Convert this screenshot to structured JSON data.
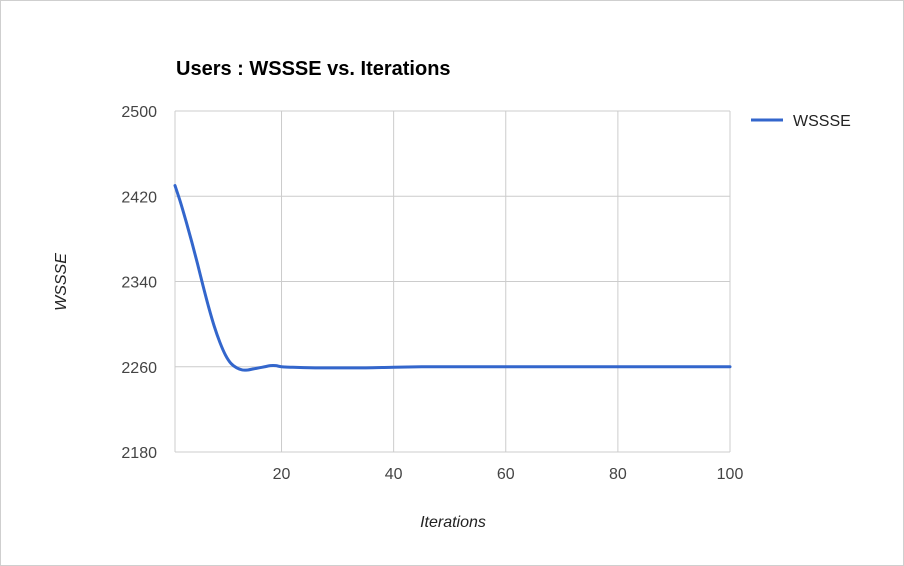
{
  "chart_data": {
    "type": "line",
    "title": "Users : WSSSE vs. Iterations",
    "xlabel": "Iterations",
    "ylabel": "WSSSE",
    "xlim": [
      1,
      100
    ],
    "ylim": [
      2180,
      2500
    ],
    "x_ticks": [
      20,
      40,
      60,
      80,
      100
    ],
    "y_ticks": [
      2180,
      2260,
      2340,
      2420,
      2500
    ],
    "x_tick_labels": [
      "20",
      "40",
      "60",
      "80",
      "100"
    ],
    "y_tick_labels": [
      "2180",
      "2260",
      "2340",
      "2420",
      "2500"
    ],
    "grid": true,
    "legend_position": "top-right",
    "series": [
      {
        "name": "WSSSE",
        "color": "#3366cc",
        "x": [
          1,
          2,
          3,
          4,
          5,
          6,
          7,
          8,
          9,
          10,
          11,
          12,
          13,
          14,
          15,
          16,
          17,
          18,
          19,
          20,
          22,
          24,
          26,
          28,
          30,
          35,
          40,
          45,
          50,
          60,
          70,
          80,
          90,
          100
        ],
        "y": [
          2430,
          2414,
          2396,
          2377,
          2357,
          2336,
          2316,
          2298,
          2283,
          2271,
          2263,
          2259,
          2257,
          2257,
          2258,
          2259,
          2260,
          2261,
          2261,
          2260,
          2259.5,
          2259.2,
          2259,
          2259,
          2259,
          2259,
          2259.5,
          2260,
          2260,
          2260,
          2260,
          2260,
          2260,
          2260
        ]
      }
    ]
  }
}
